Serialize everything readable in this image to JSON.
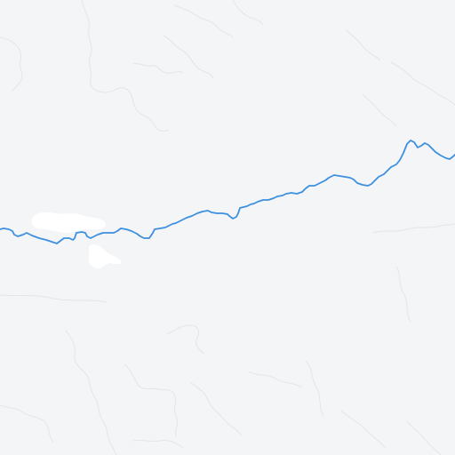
{
  "map": {
    "background_color": "#f4f5f6",
    "boundary_color": "#e3e5e8",
    "river_color": "#3d8fe0",
    "waterbody_color": "#ffffff"
  }
}
